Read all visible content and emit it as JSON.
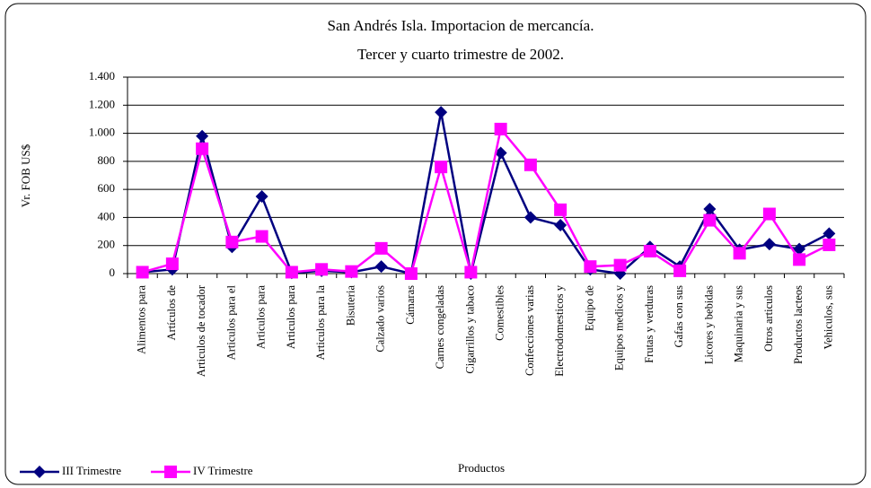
{
  "chart_data": {
    "type": "line",
    "title": [
      "San Andrés Isla. Importacion de mercancía.",
      "Tercer y cuarto trimestre de 2002."
    ],
    "x_label": "Productos",
    "y_label": "Vr. FOB US$",
    "categories": [
      "Alimentos para",
      "Artículos de",
      "Articulos de tocador",
      "Articulos para el",
      "Articulos para",
      "Articulos para",
      "Articulos para la",
      "Bisuteria",
      "Calzado varios",
      "Cámaras",
      "Carnes congeladas",
      "Cigarrillos y tabaco",
      "Comestibles",
      "Confecciones varias",
      "Electrodomesticos y",
      "Equipo de",
      "Equipos medicos y",
      "Frutas y verduras",
      "Gafas con sus",
      "Licores y bebidas",
      "Maquinaria y sus",
      "Otros articulos",
      "Productos lacteos",
      "Vehiculos, sus"
    ],
    "series": [
      {
        "name": "III Trimestre",
        "color": "#000080",
        "marker": "diamond",
        "values": [
          10,
          30,
          980,
          190,
          550,
          5,
          20,
          10,
          50,
          0,
          1150,
          0,
          860,
          400,
          345,
          30,
          0,
          190,
          50,
          460,
          170,
          210,
          175,
          285
        ]
      },
      {
        "name": "IV Trimestre",
        "color": "#ff00ff",
        "marker": "square",
        "values": [
          10,
          70,
          890,
          225,
          265,
          10,
          30,
          15,
          180,
          0,
          760,
          10,
          1030,
          775,
          455,
          50,
          60,
          160,
          20,
          380,
          145,
          425,
          100,
          205
        ]
      }
    ],
    "ylim": [
      0,
      1400
    ],
    "yticks": [
      0,
      200,
      400,
      600,
      800,
      {
        "value": 1000,
        "label": "1.000"
      },
      {
        "value": 1200,
        "label": "1.200"
      },
      {
        "value": 1400,
        "label": "1.400"
      }
    ],
    "grid": true,
    "legend": "bottom-left"
  }
}
